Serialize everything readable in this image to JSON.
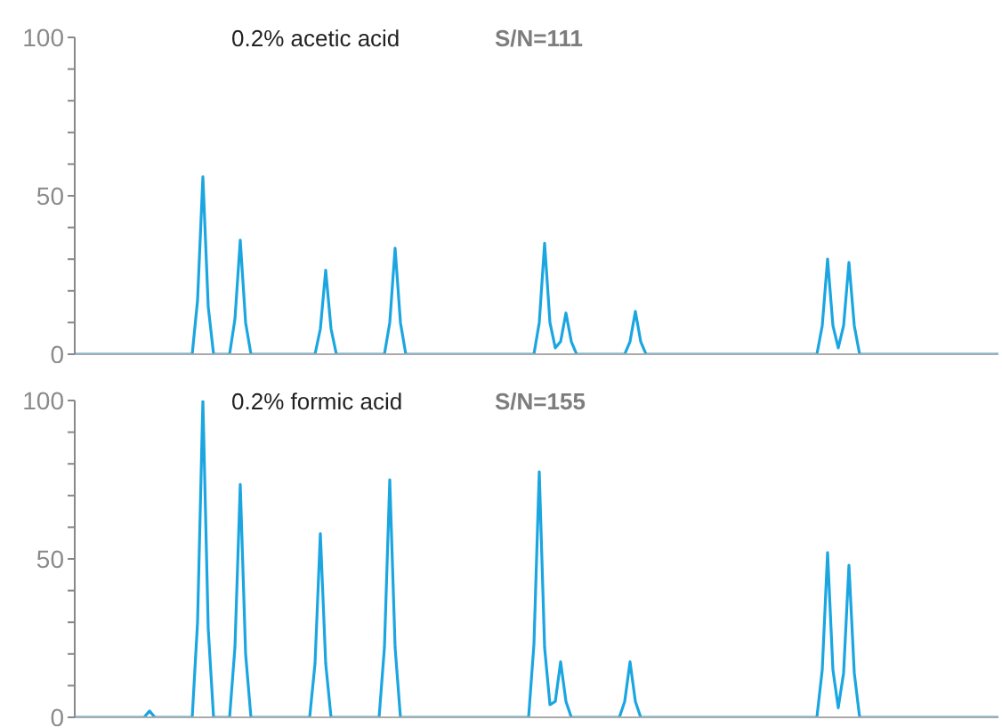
{
  "chart_data": [
    {
      "type": "line",
      "title": "0.2% acetic acid",
      "annotations": [
        "S/N=111"
      ],
      "color": "#1ba6e1",
      "marker": "none",
      "tick_labels": "y",
      "ylim": [
        0,
        100
      ],
      "yticks": [
        0,
        {
          "value": 10,
          "label": null
        },
        {
          "value": 20,
          "label": null
        },
        {
          "value": 30,
          "label": null
        },
        {
          "value": 40,
          "label": null
        },
        50,
        {
          "value": 60,
          "label": null
        },
        {
          "value": 70,
          "label": null
        },
        {
          "value": 80,
          "label": null
        },
        {
          "value": 90,
          "label": null
        },
        100
      ],
      "categories": [
        null,
        null,
        null,
        null,
        null,
        null,
        null,
        null,
        null,
        null,
        null,
        null,
        null,
        null,
        null,
        null,
        null,
        null,
        null,
        null,
        null,
        null,
        null,
        null,
        null,
        null,
        null,
        null,
        null,
        null,
        null,
        null,
        null,
        null,
        null,
        null,
        null,
        null,
        null,
        null,
        null,
        null,
        null,
        null,
        null,
        null,
        null,
        null,
        null,
        null,
        null,
        null,
        null,
        null,
        null,
        null,
        null,
        null,
        null,
        null,
        null,
        null,
        null,
        null,
        null,
        null,
        null,
        null,
        null,
        null,
        null,
        null,
        null,
        null,
        null,
        null,
        null,
        null,
        null,
        null,
        null,
        null,
        null,
        null,
        null,
        null,
        null,
        null,
        null,
        null,
        null,
        null,
        null,
        null,
        null,
        null,
        null,
        null,
        null,
        null,
        null,
        null,
        null,
        null,
        null,
        null,
        null,
        null,
        null,
        null,
        null,
        null,
        null,
        null,
        null,
        null,
        null,
        null,
        null,
        null,
        null,
        null,
        null,
        null,
        null,
        null,
        null,
        null,
        null,
        null,
        null,
        null,
        null,
        null,
        null,
        null,
        null,
        null,
        null,
        null,
        null,
        null,
        null,
        null,
        null,
        null,
        null,
        null,
        null,
        null,
        null,
        null,
        null,
        null,
        null,
        null,
        null,
        null,
        null,
        null,
        null,
        null,
        null,
        null,
        null,
        null,
        null,
        null,
        null,
        null,
        null,
        null,
        null,
        null
      ],
      "values": [
        0,
        0,
        0,
        0,
        0,
        0,
        0,
        0,
        0,
        0,
        0,
        0,
        0,
        0,
        0,
        0,
        0,
        0,
        0,
        0,
        0,
        0,
        0,
        17,
        56,
        15,
        0,
        0,
        0,
        0,
        11,
        36,
        10,
        0,
        0,
        0,
        0,
        0,
        0,
        0,
        0,
        0,
        0,
        0,
        0,
        0,
        8,
        26.5,
        8,
        0,
        0,
        0,
        0,
        0,
        0,
        0,
        0,
        0,
        0,
        10,
        33.5,
        10,
        0,
        0,
        0,
        0,
        0,
        0,
        0,
        0,
        0,
        0,
        0,
        0,
        0,
        0,
        0,
        0,
        0,
        0,
        0,
        0,
        0,
        0,
        0,
        0,
        0,
        10,
        35,
        10,
        2,
        4,
        13,
        4,
        0,
        0,
        0,
        0,
        0,
        0,
        0,
        0,
        0,
        0,
        4,
        13.5,
        4,
        0,
        0,
        0,
        0,
        0,
        0,
        0,
        0,
        0,
        0,
        0,
        0,
        0,
        0,
        0,
        0,
        0,
        0,
        0,
        0,
        0,
        0,
        0,
        0,
        0,
        0,
        0,
        0,
        0,
        0,
        0,
        0,
        0,
        9,
        30,
        9,
        2,
        9,
        29,
        9,
        0,
        0,
        0,
        0,
        0,
        0,
        0,
        0,
        0,
        0,
        0,
        0,
        0,
        0,
        0,
        0,
        0,
        0,
        0,
        0,
        0,
        0,
        0,
        0,
        0,
        0,
        0
      ]
    },
    {
      "type": "line",
      "title": "0.2% formic acid",
      "annotations": [
        "S/N=155"
      ],
      "color": "#1ba6e1",
      "marker": "none",
      "tick_labels": "y",
      "ylim": [
        0,
        100
      ],
      "yticks": [
        0,
        {
          "value": 10,
          "label": null
        },
        {
          "value": 20,
          "label": null
        },
        {
          "value": 30,
          "label": null
        },
        {
          "value": 40,
          "label": null
        },
        50,
        {
          "value": 60,
          "label": null
        },
        {
          "value": 70,
          "label": null
        },
        {
          "value": 80,
          "label": null
        },
        {
          "value": 90,
          "label": null
        },
        100
      ],
      "categories": [
        null,
        null,
        null,
        null,
        null,
        null,
        null,
        null,
        null,
        null,
        null,
        null,
        null,
        null,
        null,
        null,
        null,
        null,
        null,
        null,
        null,
        null,
        null,
        null,
        null,
        null,
        null,
        null,
        null,
        null,
        null,
        null,
        null,
        null,
        null,
        null,
        null,
        null,
        null,
        null,
        null,
        null,
        null,
        null,
        null,
        null,
        null,
        null,
        null,
        null,
        null,
        null,
        null,
        null,
        null,
        null,
        null,
        null,
        null,
        null,
        null,
        null,
        null,
        null,
        null,
        null,
        null,
        null,
        null,
        null,
        null,
        null,
        null,
        null,
        null,
        null,
        null,
        null,
        null,
        null,
        null,
        null,
        null,
        null,
        null,
        null,
        null,
        null,
        null,
        null,
        null,
        null,
        null,
        null,
        null,
        null,
        null,
        null,
        null,
        null,
        null,
        null,
        null,
        null,
        null,
        null,
        null,
        null,
        null,
        null,
        null,
        null,
        null,
        null,
        null,
        null,
        null,
        null,
        null,
        null,
        null,
        null,
        null,
        null,
        null,
        null,
        null,
        null,
        null,
        null,
        null,
        null,
        null,
        null,
        null,
        null,
        null,
        null,
        null,
        null,
        null,
        null,
        null,
        null,
        null,
        null,
        null,
        null,
        null,
        null,
        null,
        null,
        null,
        null,
        null,
        null,
        null,
        null,
        null,
        null,
        null,
        null,
        null,
        null,
        null,
        null,
        null,
        null,
        null,
        null,
        null,
        null,
        null,
        null
      ],
      "values": [
        0,
        0,
        0,
        0,
        0,
        0,
        0,
        0,
        0,
        0,
        0,
        0,
        0,
        0,
        2,
        0,
        0,
        0,
        0,
        0,
        0,
        0,
        0,
        30,
        100,
        28,
        0,
        0,
        0,
        0,
        22,
        73.5,
        20,
        0,
        0,
        0,
        0,
        0,
        0,
        0,
        0,
        0,
        0,
        0,
        0,
        17,
        58,
        17,
        0,
        0,
        0,
        0,
        0,
        0,
        0,
        0,
        0,
        0,
        22,
        75,
        22,
        0,
        0,
        0,
        0,
        0,
        0,
        0,
        0,
        0,
        0,
        0,
        0,
        0,
        0,
        0,
        0,
        0,
        0,
        0,
        0,
        0,
        0,
        0,
        0,
        0,
        23,
        77.5,
        22,
        4,
        5,
        17.5,
        5,
        0,
        0,
        0,
        0,
        0,
        0,
        0,
        0,
        0,
        0,
        5,
        17.5,
        5,
        0,
        0,
        0,
        0,
        0,
        0,
        0,
        0,
        0,
        0,
        0,
        0,
        0,
        0,
        0,
        0,
        0,
        0,
        0,
        0,
        0,
        0,
        0,
        0,
        0,
        0,
        0,
        0,
        0,
        0,
        0,
        0,
        0,
        0,
        15,
        52,
        15,
        3,
        14,
        48,
        14,
        0,
        0,
        0,
        0,
        0,
        0,
        0,
        0,
        0,
        0,
        0,
        0,
        0,
        0,
        0,
        0,
        0,
        0,
        0,
        0,
        0,
        0,
        0,
        0,
        0,
        0,
        0
      ]
    }
  ]
}
